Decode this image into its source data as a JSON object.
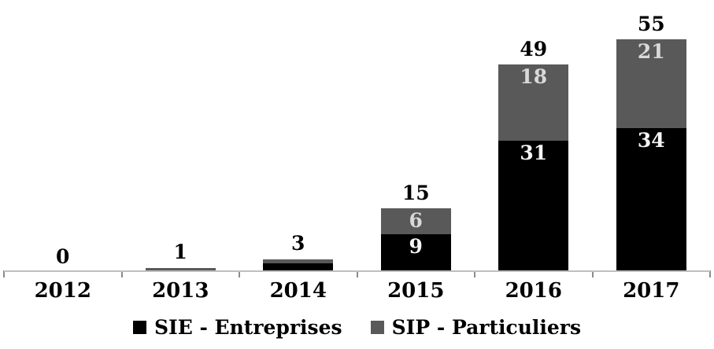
{
  "chart_data": {
    "type": "bar",
    "variant": "stacked-column",
    "title": "",
    "categories": [
      "2012",
      "2013",
      "2014",
      "2015",
      "2016",
      "2017"
    ],
    "series": [
      {
        "name": "SIE - Entreprises",
        "color": "#000000",
        "label_color": "#F5F5F5",
        "values": [
          0,
          0,
          2,
          9,
          31,
          34
        ]
      },
      {
        "name": "SIP - Particuliers",
        "color": "#595959",
        "label_color": "#D9D9D9",
        "values": [
          0,
          1,
          1,
          6,
          18,
          21
        ]
      }
    ],
    "totals": [
      0,
      1,
      3,
      15,
      49,
      55
    ],
    "segment_labels_shown": [
      "9",
      "6",
      "31",
      "18",
      "34",
      "21"
    ],
    "xlabel": "",
    "ylabel": "",
    "ylim": [
      0,
      64
    ],
    "grid": false,
    "legend_position": "bottom",
    "colors": {
      "background": "#FFFFFF",
      "axis_line": "#BFBFBF",
      "tick": "#8C8C8C",
      "total_label": "#000000",
      "year_label": "#000000"
    }
  }
}
